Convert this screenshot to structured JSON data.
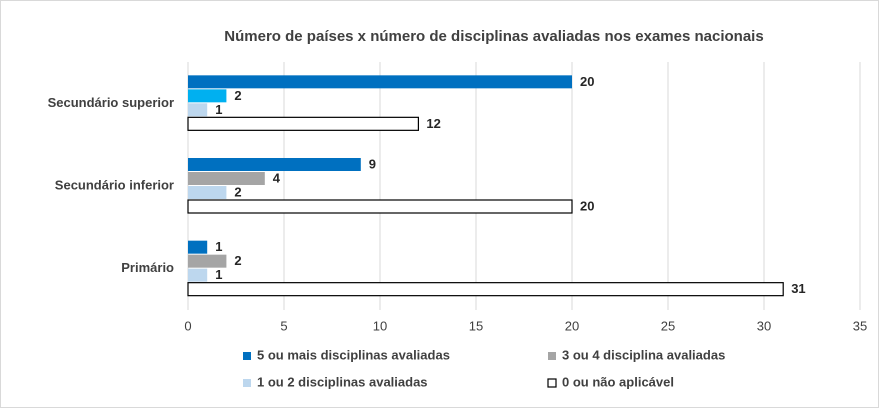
{
  "chart_data": {
    "type": "bar",
    "orientation": "horizontal",
    "title": "Número de países x número  de disciplinas avaliadas nos exames nacionais",
    "categories": [
      "Secundário superior",
      "Secundário inferior",
      "Primário"
    ],
    "series": [
      {
        "name": "5 ou mais disciplinas avaliadas",
        "color": "#0070c0",
        "values": [
          20,
          9,
          1
        ]
      },
      {
        "name": "3 ou 4 disciplina avaliadas",
        "color": "#a5a5a5",
        "colors": [
          "#00b0f0",
          "#a5a5a5",
          "#a5a5a5"
        ],
        "values": [
          2,
          4,
          2
        ]
      },
      {
        "name": "1 ou 2 disciplinas avaliadas",
        "color": "#bdd7ee",
        "values": [
          1,
          2,
          1
        ]
      },
      {
        "name": "0 ou não aplicável",
        "color": "#ffffff",
        "edgecolor": "#000000",
        "values": [
          12,
          20,
          31
        ]
      }
    ],
    "xlim": [
      0,
      35
    ],
    "xticks": [
      0,
      5,
      10,
      15,
      20,
      25,
      30,
      35
    ],
    "grid": true,
    "legend": "bottom"
  }
}
